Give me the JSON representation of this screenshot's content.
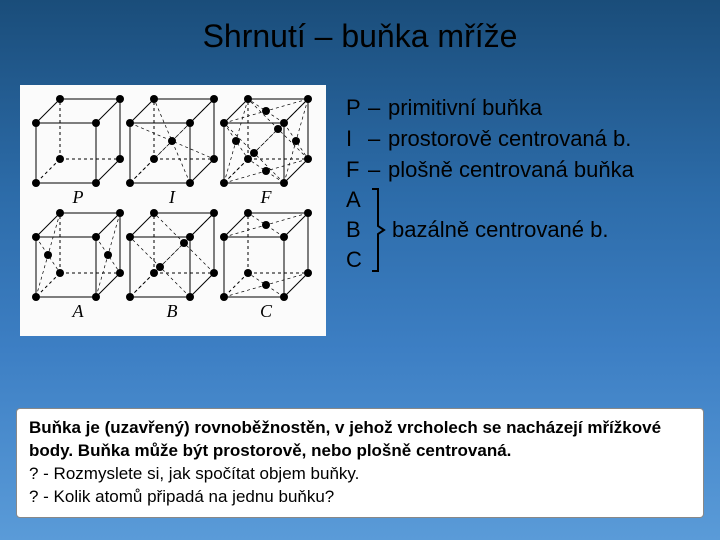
{
  "slide": {
    "title": "Shrnutí – buňka mříže",
    "background_gradient": [
      "#1a4d7a",
      "#2c6ba8",
      "#3d7fc4",
      "#5a9bd8"
    ],
    "title_color": "#000000",
    "title_fontsize": 32
  },
  "figure": {
    "background_color": "#fbfbfb",
    "rows": 2,
    "cols": 3,
    "cell_size": 88,
    "cube_side": 60,
    "depth": 24,
    "atom_radius": 4,
    "atom_fill": "#000000",
    "edge_color": "#000000",
    "edge_width": 1,
    "dash_pattern": "3,3",
    "labels_row1": [
      "P",
      "I",
      "F"
    ],
    "labels_row2": [
      "A",
      "B",
      "C"
    ],
    "cells": [
      {
        "label": "P",
        "extra_atoms": []
      },
      {
        "label": "I",
        "extra_atoms": [
          "body_center"
        ]
      },
      {
        "label": "F",
        "extra_atoms": [
          "face_front",
          "face_back",
          "face_left",
          "face_right",
          "face_top",
          "face_bottom"
        ]
      },
      {
        "label": "A",
        "extra_atoms": [
          "face_left",
          "face_right"
        ]
      },
      {
        "label": "B",
        "extra_atoms": [
          "face_front",
          "face_back"
        ]
      },
      {
        "label": "C",
        "extra_atoms": [
          "face_top",
          "face_bottom"
        ]
      }
    ]
  },
  "legend": {
    "fontsize": 22,
    "text_color": "#000000",
    "items": [
      {
        "letter": "P",
        "desc": "primitivní buňka"
      },
      {
        "letter": "I",
        "desc": "prostorově centrovaná b."
      },
      {
        "letter": "F",
        "desc": "plošně centrovaná buňka"
      }
    ],
    "bracket_group": {
      "letters": [
        "A",
        "B",
        "C"
      ],
      "desc": "bazálně centrované b."
    }
  },
  "bottom_box": {
    "background_color": "#ffffff",
    "border_color": "#888888",
    "fontsize": 17,
    "lines": [
      {
        "text": "Buňka je (uzavřený) rovnoběžnostěn, v jehož vrcholech se nacházejí mřížkové body. Buňka může být prostorově, nebo plošně centrovaná.",
        "bold": true
      },
      {
        "text": "? - Rozmyslete si, jak spočítat objem buňky.",
        "bold": false
      },
      {
        "text": "? - Kolik atomů připadá na jednu buňku?",
        "bold": false
      }
    ]
  }
}
